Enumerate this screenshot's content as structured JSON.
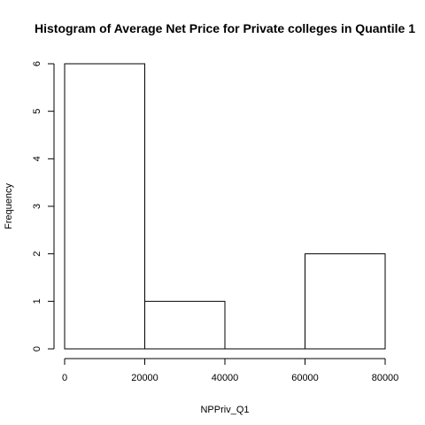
{
  "chart_data": {
    "type": "bar",
    "title": "Histogram of Average Net Price for Private colleges in Quantile 1",
    "xlabel": "NPPriv_Q1",
    "ylabel": "Frequency",
    "bins": [
      {
        "start": 0,
        "end": 20000,
        "value": 6
      },
      {
        "start": 20000,
        "end": 40000,
        "value": 1
      },
      {
        "start": 40000,
        "end": 60000,
        "value": 0
      },
      {
        "start": 60000,
        "end": 80000,
        "value": 2
      }
    ],
    "xlim": [
      0,
      80000
    ],
    "ylim": [
      0,
      6
    ],
    "xticks": [
      0,
      20000,
      40000,
      60000,
      80000
    ],
    "yticks": [
      0,
      1,
      2,
      3,
      4,
      5,
      6
    ],
    "grid": false
  }
}
